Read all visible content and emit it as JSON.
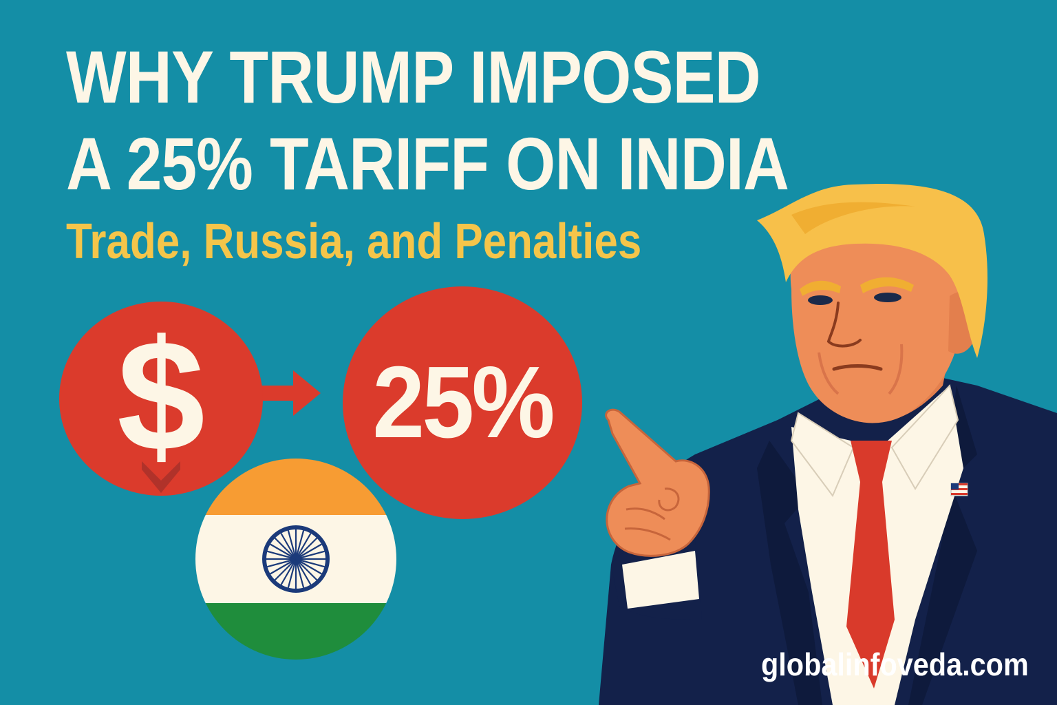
{
  "headline": {
    "line_1": "WHY TRUMP IMPOSED",
    "line_2": "A 25% TARIFF ON INDIA"
  },
  "subheadline": "Trade, Russia, and Penalties",
  "graphics": {
    "currency_symbol": "$",
    "tariff_label": "25%",
    "flag": "india-flag",
    "icons": [
      "dollar-icon",
      "arrow-right-icon",
      "chevron-down-icon",
      "ashoka-chakra-icon",
      "us-flag-pin-icon"
    ]
  },
  "watermark": "globalinfoveda.com",
  "colors": {
    "background": "#148ea6",
    "headline": "#fdf6e6",
    "subheadline": "#f5c54a",
    "circle_red": "#db3b2c",
    "saffron": "#f79c33",
    "green": "#1f8d3c",
    "chakra_blue": "#1b3a7a",
    "suit_navy": "#13214a",
    "tie_red": "#d93a2b",
    "hair": "#f7c04a",
    "skin": "#ee8d58"
  }
}
